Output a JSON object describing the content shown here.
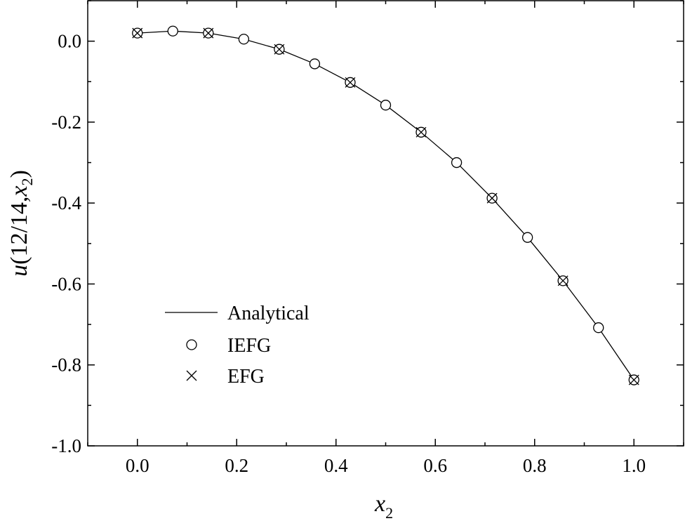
{
  "chart_data": {
    "type": "line",
    "xlabel_main": "x",
    "xlabel_sub": "2",
    "ylabel_main": "u(12/14,x",
    "ylabel_sub": "2",
    "ylabel_close": ")",
    "xlim": [
      -0.1,
      1.1
    ],
    "ylim": [
      -1.0,
      0.1
    ],
    "grid": false,
    "legend_position": "bottom-left",
    "x_ticks": [
      0.0,
      0.2,
      0.4,
      0.6,
      0.8,
      1.0
    ],
    "x_tick_labels": [
      "0.0",
      "0.2",
      "0.4",
      "0.6",
      "0.8",
      "1.0"
    ],
    "x_minor_ticks": [
      -0.1,
      0.1,
      0.3,
      0.5,
      0.7,
      0.9,
      1.1
    ],
    "y_ticks": [
      0.0,
      -0.2,
      -0.4,
      -0.6,
      -0.8,
      -1.0
    ],
    "y_tick_labels": [
      "0.0",
      "-0.2",
      "-0.4",
      "-0.6",
      "-0.8",
      "-1.0"
    ],
    "y_minor_ticks": [
      0.1,
      -0.1,
      -0.3,
      -0.5,
      -0.7,
      -0.9
    ],
    "series": [
      {
        "name": "Analytical",
        "style": "line",
        "x": [
          0.0,
          0.0714,
          0.1429,
          0.2143,
          0.2857,
          0.3571,
          0.4286,
          0.5,
          0.5714,
          0.6429,
          0.7143,
          0.7857,
          0.8571,
          0.9286,
          1.0
        ],
        "y": [
          0.02,
          0.025,
          0.02,
          0.005,
          -0.02,
          -0.056,
          -0.102,
          -0.158,
          -0.225,
          -0.3,
          -0.388,
          -0.485,
          -0.592,
          -0.708,
          -0.837
        ]
      },
      {
        "name": "IEFG",
        "style": "circle",
        "x": [
          0.0,
          0.0714,
          0.1429,
          0.2143,
          0.2857,
          0.3571,
          0.4286,
          0.5,
          0.5714,
          0.6429,
          0.7143,
          0.7857,
          0.8571,
          0.9286,
          1.0
        ],
        "y": [
          0.02,
          0.025,
          0.02,
          0.005,
          -0.02,
          -0.056,
          -0.102,
          -0.158,
          -0.225,
          -0.3,
          -0.388,
          -0.485,
          -0.592,
          -0.708,
          -0.837
        ]
      },
      {
        "name": "EFG",
        "style": "cross",
        "x": [
          0.0,
          0.1429,
          0.2857,
          0.4286,
          0.5714,
          0.7143,
          0.8571,
          1.0
        ],
        "y": [
          0.02,
          0.02,
          -0.02,
          -0.102,
          -0.225,
          -0.388,
          -0.592,
          -0.837
        ]
      }
    ],
    "colors": {
      "line": "#000000",
      "marker": "#000000",
      "background": "#ffffff"
    }
  }
}
